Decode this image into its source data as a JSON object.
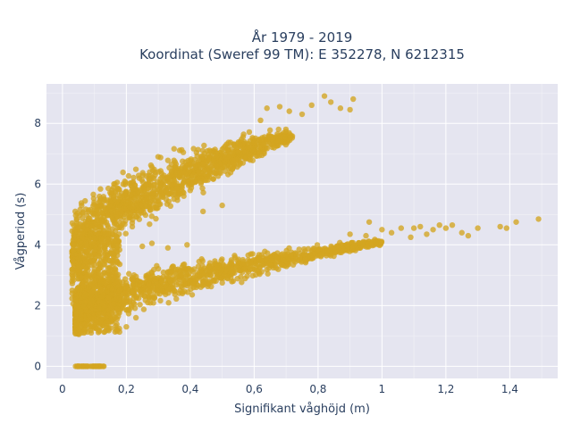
{
  "chart_data": {
    "type": "scatter",
    "title_line1": "År 1979 - 2019",
    "title_line2": "Koordinat (Sweref 99 TM): E 352278, N 6212315",
    "xlabel": "Signifikant våghöjd (m)",
    "ylabel": "Vågperiod (s)",
    "xlim": [
      -0.05,
      1.55
    ],
    "ylim": [
      -0.4,
      9.3
    ],
    "x_ticks": [
      0,
      0.2,
      0.4,
      0.6,
      0.8,
      1.0,
      1.2,
      1.4
    ],
    "x_tick_labels": [
      "0",
      "0,2",
      "0,4",
      "0,6",
      "0,8",
      "1",
      "1,2",
      "1,4"
    ],
    "y_ticks": [
      0,
      2,
      4,
      6,
      8
    ],
    "y_tick_labels": [
      "0",
      "2",
      "4",
      "6",
      "8"
    ],
    "grid": true,
    "marker_color": "#D4A520",
    "background_color": "#E5E5F0",
    "clusters": {
      "lower_branch": {
        "x_range": [
          0.04,
          1.0
        ],
        "y_start": 1.2,
        "y_end": 4.2
      },
      "upper_branch": {
        "x_range": [
          0.03,
          0.72
        ],
        "y_start": 2.0,
        "y_end": 7.8
      },
      "calm": {
        "x_range": [
          0.03,
          0.13
        ],
        "y": 0
      }
    },
    "outliers": [
      {
        "x": 0.82,
        "y": 8.9
      },
      {
        "x": 0.84,
        "y": 8.7
      },
      {
        "x": 0.87,
        "y": 8.5
      },
      {
        "x": 0.91,
        "y": 8.8
      },
      {
        "x": 0.9,
        "y": 8.45
      },
      {
        "x": 0.78,
        "y": 8.6
      },
      {
        "x": 0.75,
        "y": 8.3
      },
      {
        "x": 0.71,
        "y": 8.4
      },
      {
        "x": 0.68,
        "y": 8.55
      },
      {
        "x": 0.64,
        "y": 8.5
      },
      {
        "x": 0.62,
        "y": 8.1
      },
      {
        "x": 0.58,
        "y": 7.2
      },
      {
        "x": 0.5,
        "y": 5.3
      },
      {
        "x": 0.44,
        "y": 5.1
      },
      {
        "x": 0.39,
        "y": 4.0
      },
      {
        "x": 0.34,
        "y": 5.7
      },
      {
        "x": 0.2,
        "y": 1.3
      },
      {
        "x": 0.23,
        "y": 1.6
      },
      {
        "x": 0.04,
        "y": 5.1
      },
      {
        "x": 0.03,
        "y": 2.8
      },
      {
        "x": 0.06,
        "y": 5.3
      },
      {
        "x": 0.9,
        "y": 4.35
      },
      {
        "x": 0.95,
        "y": 4.3
      },
      {
        "x": 1.0,
        "y": 4.5
      },
      {
        "x": 1.03,
        "y": 4.4
      },
      {
        "x": 1.06,
        "y": 4.55
      },
      {
        "x": 1.09,
        "y": 4.25
      },
      {
        "x": 1.1,
        "y": 4.55
      },
      {
        "x": 1.12,
        "y": 4.6
      },
      {
        "x": 1.14,
        "y": 4.35
      },
      {
        "x": 1.16,
        "y": 4.5
      },
      {
        "x": 1.18,
        "y": 4.65
      },
      {
        "x": 1.2,
        "y": 4.55
      },
      {
        "x": 1.22,
        "y": 4.65
      },
      {
        "x": 1.25,
        "y": 4.4
      },
      {
        "x": 1.27,
        "y": 4.3
      },
      {
        "x": 1.3,
        "y": 4.55
      },
      {
        "x": 1.37,
        "y": 4.6
      },
      {
        "x": 1.39,
        "y": 4.55
      },
      {
        "x": 1.42,
        "y": 4.75
      },
      {
        "x": 1.49,
        "y": 4.85
      },
      {
        "x": 0.96,
        "y": 4.75
      },
      {
        "x": 0.33,
        "y": 3.9
      },
      {
        "x": 0.28,
        "y": 4.05
      },
      {
        "x": 0.25,
        "y": 3.95
      }
    ]
  }
}
